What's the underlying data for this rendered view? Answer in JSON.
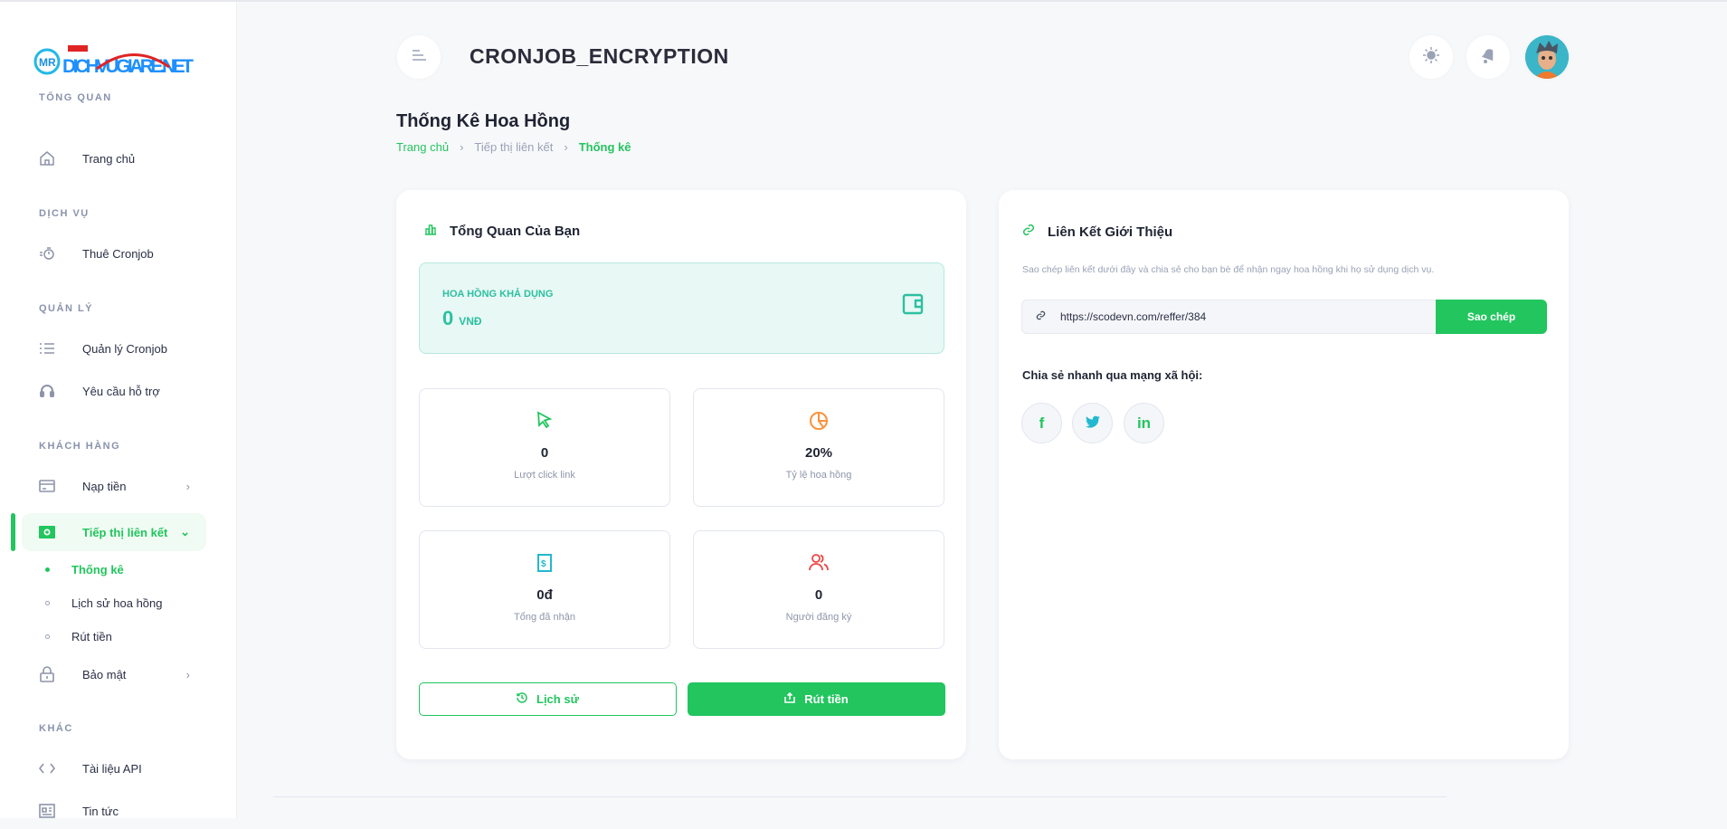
{
  "header": {
    "title": "CRONJOB_ENCRYPTION",
    "icons": [
      "menu-icon",
      "sun-icon",
      "bell-icon",
      "avatar"
    ]
  },
  "sidebar": {
    "logo_text": "DICHVUGIARE.NET",
    "sections": [
      {
        "title": "TỔNG QUAN",
        "items": [
          {
            "label": "Trang chủ",
            "icon": "home-icon"
          }
        ]
      },
      {
        "title": "DỊCH VỤ",
        "items": [
          {
            "label": "Thuê Cronjob",
            "icon": "timer-icon"
          }
        ]
      },
      {
        "title": "QUẢN LÝ",
        "items": [
          {
            "label": "Quản lý Cronjob",
            "icon": "list-icon"
          },
          {
            "label": "Yêu cầu hỗ trợ",
            "icon": "headset-icon"
          }
        ]
      },
      {
        "title": "KHÁCH HÀNG",
        "items": [
          {
            "label": "Nạp tiền",
            "icon": "card-icon"
          },
          {
            "label": "Tiếp thị liên kết",
            "icon": "money-icon",
            "active": true,
            "children": [
              "Thống kê",
              "Lịch sử hoa hồng",
              "Rút tiền"
            ]
          },
          {
            "label": "Bảo mật",
            "icon": "lock-icon"
          }
        ]
      },
      {
        "title": "KHÁC",
        "items": [
          {
            "label": "Tài liệu API",
            "icon": "code-icon"
          },
          {
            "label": "Tin tức",
            "icon": "news-icon"
          }
        ]
      }
    ]
  },
  "page": {
    "title": "Thống Kê Hoa Hồng",
    "breadcrumb": [
      "Trang chủ",
      "Tiếp thị liên kết",
      "Thống kê"
    ]
  },
  "overview": {
    "title": "Tổng Quan Của Bạn",
    "balance": {
      "label": "HOA HỒNG KHẢ DỤNG",
      "value": "0",
      "unit": "VNĐ"
    },
    "stats": [
      {
        "value": "0",
        "label": "Lượt click link",
        "icon": "cursor-icon",
        "color": "#22c55e"
      },
      {
        "value": "20%",
        "label": "Tỷ lệ hoa hồng",
        "icon": "pie-chart-icon",
        "color": "#fb923c"
      },
      {
        "value": "0đ",
        "label": "Tổng đã nhận",
        "icon": "receipt-icon",
        "color": "#22b8cf"
      },
      {
        "value": "0",
        "label": "Người đăng ký",
        "icon": "users-icon",
        "color": "#ef4444"
      }
    ],
    "history_button": "Lịch sử",
    "withdraw_button": "Rút tiền"
  },
  "referral": {
    "title": "Liên Kết Giới Thiệu",
    "description": "Sao chép liên kết dưới đây và chia sẻ cho bạn bè để nhận ngay hoa hồng khi họ sử dụng dịch vụ.",
    "link": "https://scodevn.com/reffer/384",
    "copy_button": "Sao chép",
    "share_label": "Chia sẻ nhanh qua mạng xã hội:",
    "socials": [
      "facebook",
      "twitter",
      "linkedin"
    ]
  },
  "colors": {
    "accent": "#22c55e",
    "teal": "#2cc0a0"
  }
}
